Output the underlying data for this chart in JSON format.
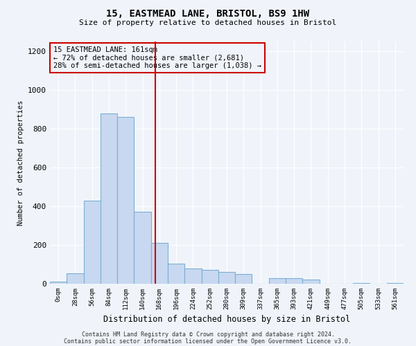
{
  "title1": "15, EASTMEAD LANE, BRISTOL, BS9 1HW",
  "title2": "Size of property relative to detached houses in Bristol",
  "xlabel": "Distribution of detached houses by size in Bristol",
  "ylabel": "Number of detached properties",
  "annotation_title": "15 EASTMEAD LANE: 161sqm",
  "annotation_line1": "← 72% of detached houses are smaller (2,681)",
  "annotation_line2": "28% of semi-detached houses are larger (1,038) →",
  "bin_labels": [
    "0sqm",
    "28sqm",
    "56sqm",
    "84sqm",
    "112sqm",
    "140sqm",
    "168sqm",
    "196sqm",
    "224sqm",
    "252sqm",
    "280sqm",
    "309sqm",
    "337sqm",
    "365sqm",
    "393sqm",
    "421sqm",
    "449sqm",
    "477sqm",
    "505sqm",
    "533sqm",
    "561sqm"
  ],
  "bar_values": [
    10,
    55,
    430,
    880,
    860,
    370,
    210,
    105,
    80,
    70,
    60,
    50,
    0,
    30,
    28,
    20,
    0,
    0,
    5,
    0,
    5
  ],
  "bar_color": "#c8d8f0",
  "bar_edge_color": "#7bafd4",
  "vline_x": 5.75,
  "vline_color": "#cc0000",
  "annotation_box_color": "#cc0000",
  "background_color": "#f0f4fa",
  "ylim": [
    0,
    1250
  ],
  "yticks": [
    0,
    200,
    400,
    600,
    800,
    1000,
    1200
  ],
  "footer1": "Contains HM Land Registry data © Crown copyright and database right 2024.",
  "footer2": "Contains public sector information licensed under the Open Government Licence v3.0."
}
